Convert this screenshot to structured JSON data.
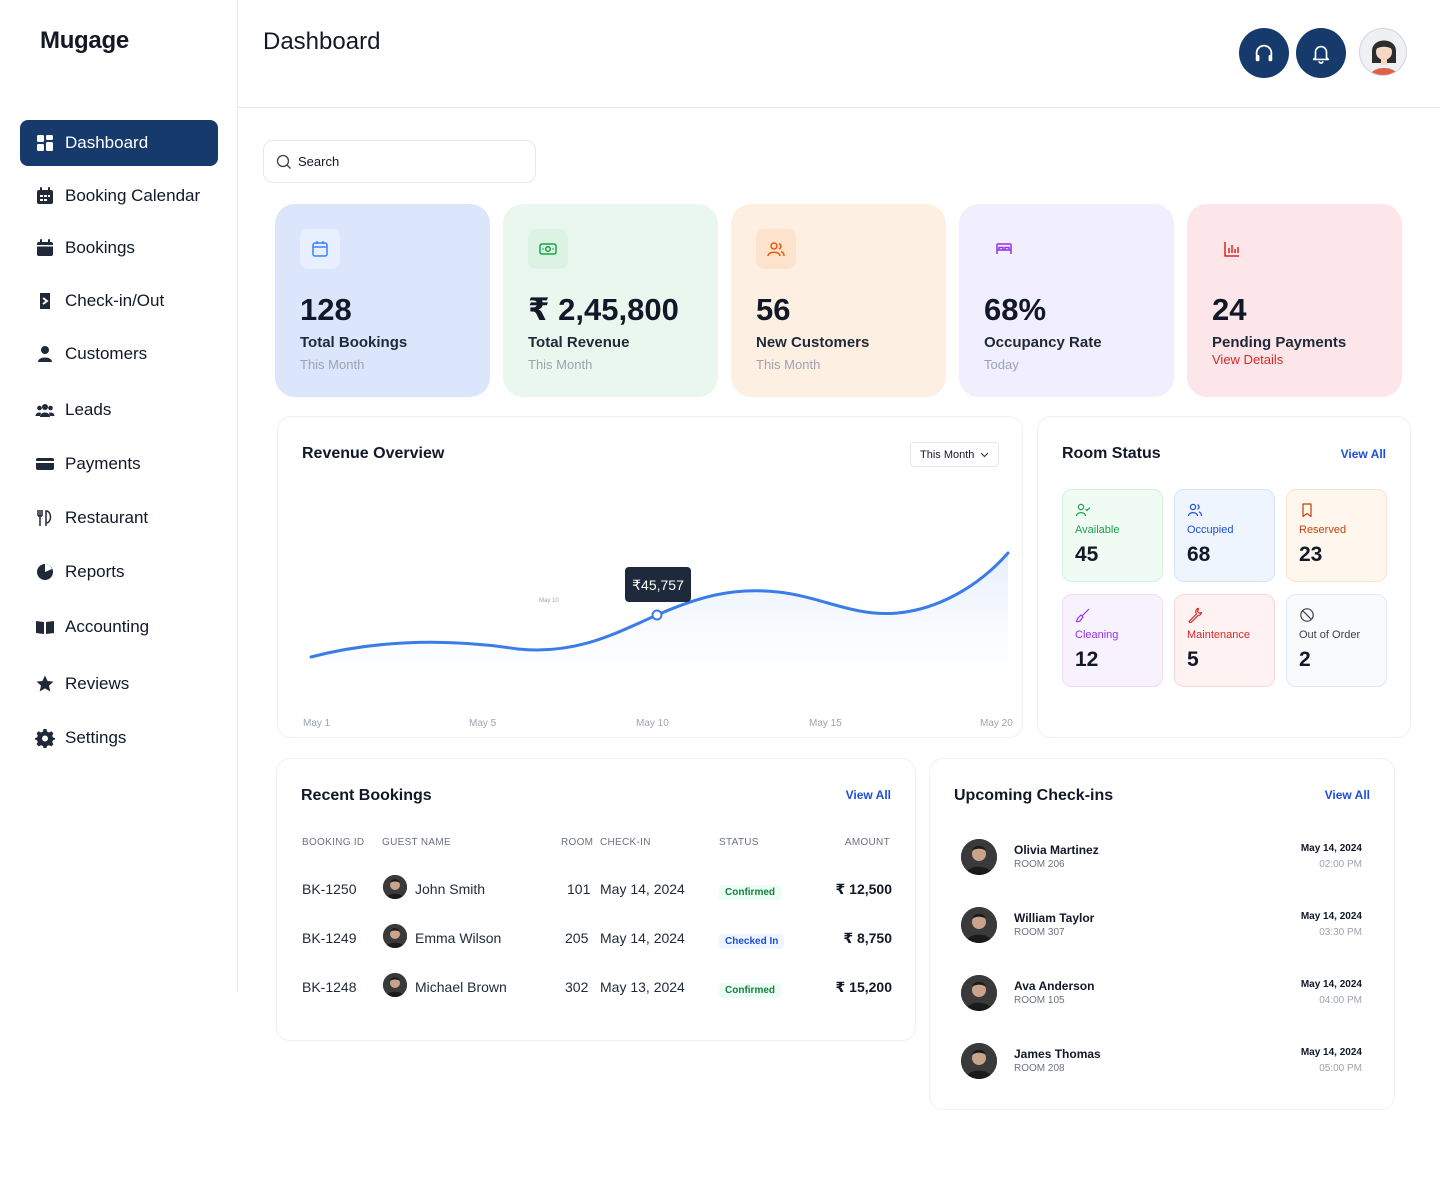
{
  "brand": "Mugage",
  "header": {
    "title": "Dashboard"
  },
  "sidebar": {
    "items": [
      {
        "label": "Dashboard",
        "icon": "dashboard-icon"
      },
      {
        "label": "Booking Calendar",
        "icon": "calendar-icon"
      },
      {
        "label": "Bookings",
        "icon": "bookings-icon"
      },
      {
        "label": "Check-in/Out",
        "icon": "check-in-out-icon"
      },
      {
        "label": "Customers",
        "icon": "user-icon"
      },
      {
        "label": "Leads",
        "icon": "users-icon"
      },
      {
        "label": "Payments",
        "icon": "credit-card-icon"
      },
      {
        "label": "Restaurant",
        "icon": "utensils-icon"
      },
      {
        "label": "Reports",
        "icon": "pie-chart-icon"
      },
      {
        "label": "Accounting",
        "icon": "book-icon"
      },
      {
        "label": "Reviews",
        "icon": "star-icon"
      },
      {
        "label": "Settings",
        "icon": "gear-icon"
      }
    ]
  },
  "search": {
    "placeholder": "Search"
  },
  "stats": [
    {
      "value": "128",
      "label": "Total Bookings",
      "sub": "This Month",
      "icon": "calendar-icon",
      "bg": "#dbe6fd",
      "icon_bg": "#e8effe",
      "icon_color": "#3b82f6"
    },
    {
      "value": "₹ 2,45,800",
      "label": "Total Revenue",
      "sub": "This Month",
      "icon": "money-icon",
      "bg": "#e9f7ee",
      "icon_bg": "#dcf3e4",
      "icon_color": "#16a34a"
    },
    {
      "value": "56",
      "label": "New Customers",
      "sub": "This Month",
      "icon": "users-icon",
      "bg": "#fdf0e2",
      "icon_bg": "#fde3cc",
      "icon_color": "#ea580c"
    },
    {
      "value": "68%",
      "label": "Occupancy Rate",
      "sub": "Today",
      "icon": "bed-icon",
      "bg": "#f1eefd",
      "icon_bg": "#f1eefd",
      "icon_color": "#9333ea"
    },
    {
      "value": "24",
      "label": "Pending Payments",
      "link": "View Details",
      "icon": "bar-chart-icon",
      "bg": "#fde6e9",
      "icon_bg": "#fde6e9",
      "icon_color": "#dc2626"
    }
  ],
  "revenue": {
    "title": "Revenue Overview",
    "range": "This Month",
    "tooltip": "₹45,757",
    "hover_label": "May 10"
  },
  "chart_data": {
    "type": "area",
    "x": [
      "May 1",
      "May 5",
      "May 10",
      "May 15",
      "May 20"
    ],
    "tick_labels": [
      "May 1",
      "May 5",
      "May 10",
      "May 15",
      "May 20"
    ],
    "highlight": {
      "x": "May 10",
      "value": 45757,
      "label": "₹45,757"
    },
    "grid": false,
    "legend": "none"
  },
  "room_status": {
    "title": "Room Status",
    "view_all": "View All",
    "tiles": [
      {
        "label": "Available",
        "value": "45",
        "icon": "user-check-icon",
        "color": "#16a34a",
        "bg": "#effbf3",
        "border": "#d1f3dc"
      },
      {
        "label": "Occupied",
        "value": "68",
        "icon": "users-icon",
        "color": "#1d4ed8",
        "bg": "#eff5fe",
        "border": "#d6e4fb"
      },
      {
        "label": "Reserved",
        "value": "23",
        "icon": "bookmark-icon",
        "color": "#c2410c",
        "bg": "#fff6ee",
        "border": "#fbe2cc"
      },
      {
        "label": "Cleaning",
        "value": "12",
        "icon": "brush-icon",
        "color": "#9333ea",
        "bg": "#f8f1fe",
        "border": "#eddcfb"
      },
      {
        "label": "Maintenance",
        "value": "5",
        "icon": "wrench-icon",
        "color": "#dc2626",
        "bg": "#fef2f2",
        "border": "#fbd5d5"
      },
      {
        "label": "Out of Order",
        "value": "2",
        "icon": "ban-icon",
        "color": "#374151",
        "bg": "#f8fafc",
        "border": "#e2e8f0"
      }
    ]
  },
  "recent_bookings": {
    "title": "Recent Bookings",
    "view_all": "View All",
    "columns": [
      "BOOKING ID",
      "GUEST NAME",
      "ROOM",
      "CHECK-IN",
      "STATUS",
      "AMOUNT"
    ],
    "rows": [
      {
        "id": "BK-1250",
        "guest": "John Smith",
        "room": "101",
        "checkin": "May 14, 2024",
        "status": "Confirmed",
        "status_kind": "green",
        "amount": "₹ 12,500"
      },
      {
        "id": "BK-1249",
        "guest": "Emma Wilson",
        "room": "205",
        "checkin": "May 14, 2024",
        "status": "Checked In",
        "status_kind": "blue",
        "amount": "₹ 8,750"
      },
      {
        "id": "BK-1248",
        "guest": "Michael Brown",
        "room": "302",
        "checkin": "May 13, 2024",
        "status": "Confirmed",
        "status_kind": "green",
        "amount": "₹ 15,200"
      }
    ]
  },
  "upcoming": {
    "title": "Upcoming Check-ins",
    "view_all": "View All",
    "items": [
      {
        "name": "Olivia Martinez",
        "room": "ROOM 206",
        "date": "May 14, 2024",
        "time": "02:00 PM"
      },
      {
        "name": "William Taylor",
        "room": "ROOM 307",
        "date": "May 14, 2024",
        "time": "03:30 PM"
      },
      {
        "name": "Ava Anderson",
        "room": "ROOM 105",
        "date": "May 14, 2024",
        "time": "04:00 PM"
      },
      {
        "name": "James Thomas",
        "room": "ROOM 208",
        "date": "May 14, 2024",
        "time": "05:00 PM"
      }
    ]
  }
}
